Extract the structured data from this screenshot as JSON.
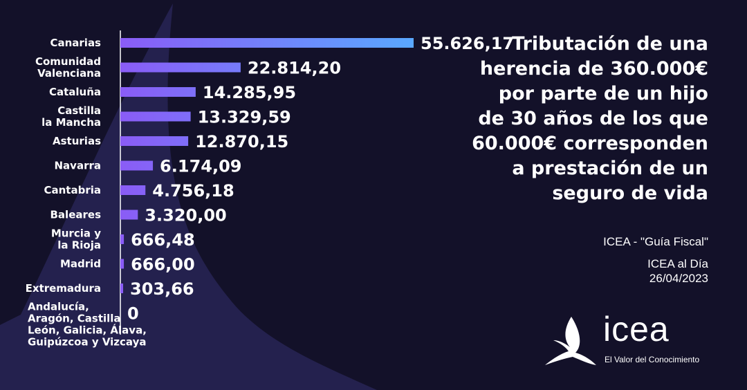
{
  "chart_data": {
    "type": "bar",
    "orientation": "horizontal",
    "categories": [
      [
        "Canarias"
      ],
      [
        "Comunidad",
        "Valenciana"
      ],
      [
        "Cataluña"
      ],
      [
        "Castilla",
        "la Mancha"
      ],
      [
        "Asturias"
      ],
      [
        "Navarra"
      ],
      [
        "Cantabria"
      ],
      [
        "Baleares"
      ],
      [
        "Murcia y",
        "la Rioja"
      ],
      [
        "Madrid"
      ],
      [
        "Extremadura"
      ],
      [
        "Andalucía,",
        "Aragón, Castilla",
        "León, Galicia, Álava,",
        "Guipúzcoa y Vizcaya"
      ]
    ],
    "values": [
      55626.17,
      22814.2,
      14285.95,
      13329.59,
      12870.15,
      6174.09,
      4756.18,
      3320.0,
      666.48,
      666.0,
      303.66,
      0
    ],
    "value_labels": [
      "55.626,17",
      "22.814,20",
      "14.285,95",
      "13.329,59",
      "12.870,15",
      "6.174,09",
      "4.756,18",
      "3.320,00",
      "666,48",
      "666,00",
      "303,66",
      "0"
    ],
    "xlim": [
      0,
      55626.17
    ],
    "grid": false,
    "legend": "none",
    "colors": {
      "bar_start": "#8a5cf6",
      "bar_end": "#5aa8ff",
      "axis": "#ffffff"
    }
  },
  "title_lines": [
    "Tributación de una",
    "herencia de 360.000€",
    "por parte de un hijo",
    "de 30 años de los que",
    "60.000€ corresponden",
    "a prestación de un",
    "seguro de vida"
  ],
  "source": {
    "guide": "ICEA - \"Guía Fiscal\"",
    "publication": "ICEA al Día",
    "date": "26/04/2023"
  },
  "logo": {
    "wordmark": "icea",
    "tagline": "El Valor del Conocimiento"
  },
  "colors": {
    "background": "#131129",
    "shape": "#2b2756",
    "text": "#ffffff"
  }
}
